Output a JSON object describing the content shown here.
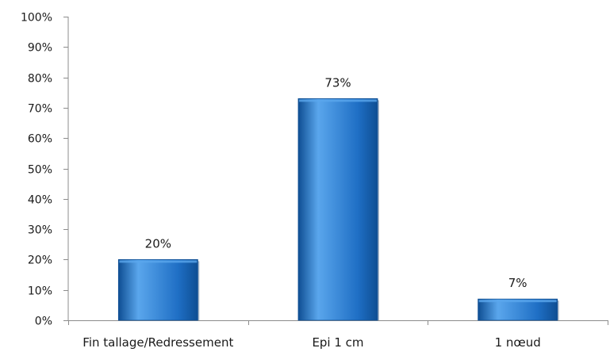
{
  "chart_data": {
    "type": "bar",
    "categories": [
      "Fin tallage/Redressement",
      "Epi 1 cm",
      "1 nœud"
    ],
    "values": [
      20,
      73,
      7
    ],
    "data_labels": [
      "20%",
      "73%",
      "7%"
    ],
    "title": "",
    "xlabel": "",
    "ylabel": "",
    "ylim": [
      0,
      100
    ],
    "y_ticks": [
      0,
      10,
      20,
      30,
      40,
      50,
      60,
      70,
      80,
      90,
      100
    ],
    "y_tick_labels": [
      "0%",
      "10%",
      "20%",
      "30%",
      "40%",
      "50%",
      "60%",
      "70%",
      "80%",
      "90%",
      "100%"
    ],
    "grid": false,
    "legend": "none",
    "colors": {
      "bar": "#1f6fc5",
      "bar_light": "#5aa6ec",
      "bar_dark": "#0e4e93",
      "axis": "#8c8c8c"
    }
  }
}
